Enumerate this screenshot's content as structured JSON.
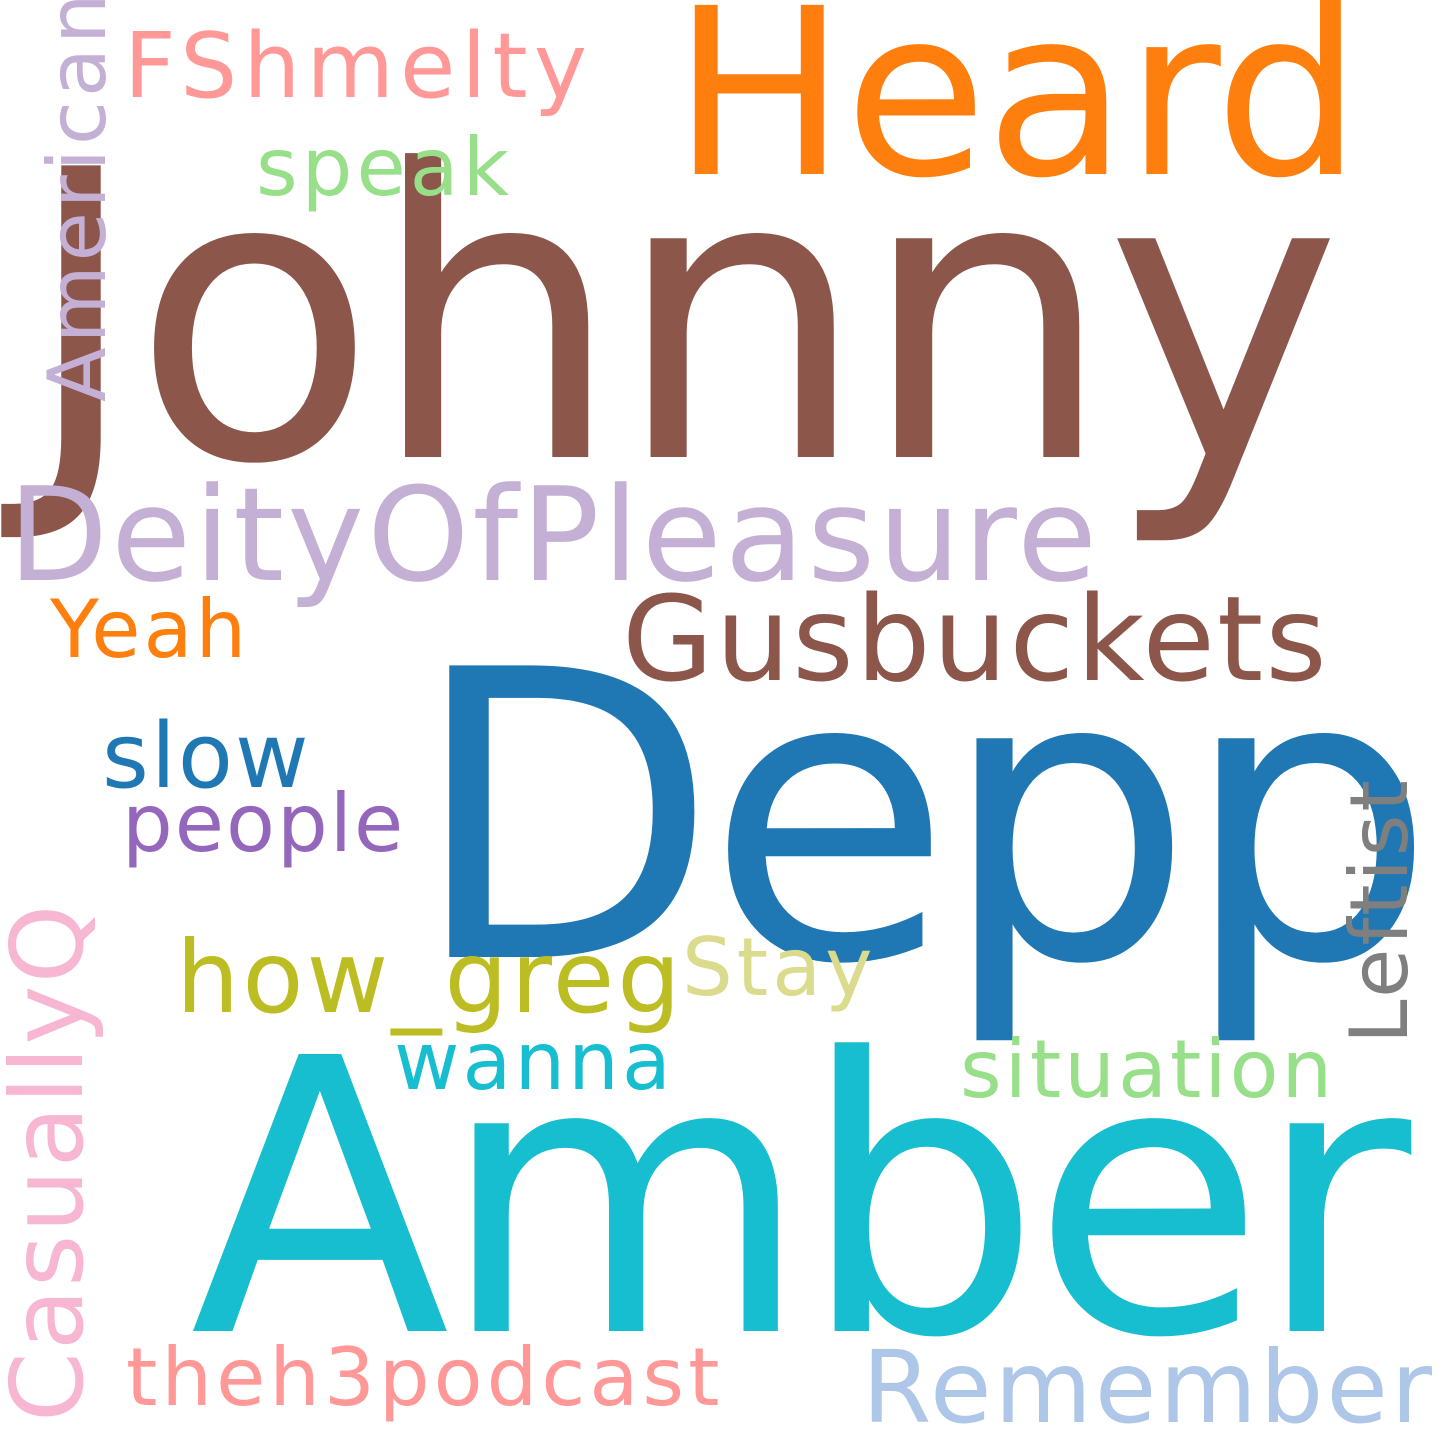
{
  "words": {
    "johnny": {
      "text": "Johnny",
      "color": "#8c564b"
    },
    "depp": {
      "text": "Depp",
      "color": "#1f77b4"
    },
    "amber": {
      "text": "Amber",
      "color": "#17becf"
    },
    "heard": {
      "text": "Heard",
      "color": "#ff7f0e"
    },
    "deity": {
      "text": "DeityOfPleasure",
      "color": "#c5b0d5"
    },
    "gusbuckets": {
      "text": "Gusbuckets",
      "color": "#8c564b"
    },
    "fshmelty": {
      "text": "FShmelty",
      "color": "#ff9896"
    },
    "speak": {
      "text": "speak",
      "color": "#98df8a"
    },
    "american": {
      "text": "American",
      "color": "#c5b0d5"
    },
    "yeah": {
      "text": "Yeah",
      "color": "#ff7f0e"
    },
    "slow": {
      "text": "slow",
      "color": "#1f77b4"
    },
    "people": {
      "text": "people",
      "color": "#9467bd"
    },
    "how_greg": {
      "text": "how_greg",
      "color": "#bcbd22"
    },
    "stay": {
      "text": "Stay",
      "color": "#dbdb8d"
    },
    "wanna": {
      "text": "wanna",
      "color": "#17becf"
    },
    "leftist": {
      "text": "Leftist",
      "color": "#7f7f7f"
    },
    "situation": {
      "text": "situation",
      "color": "#98df8a"
    },
    "casuallyq": {
      "text": "CasuallyQ",
      "color": "#f7b6d2"
    },
    "theh3podcast": {
      "text": "theh3podcast",
      "color": "#ff9896"
    },
    "remember": {
      "text": "Remember",
      "color": "#aec7e8"
    }
  }
}
